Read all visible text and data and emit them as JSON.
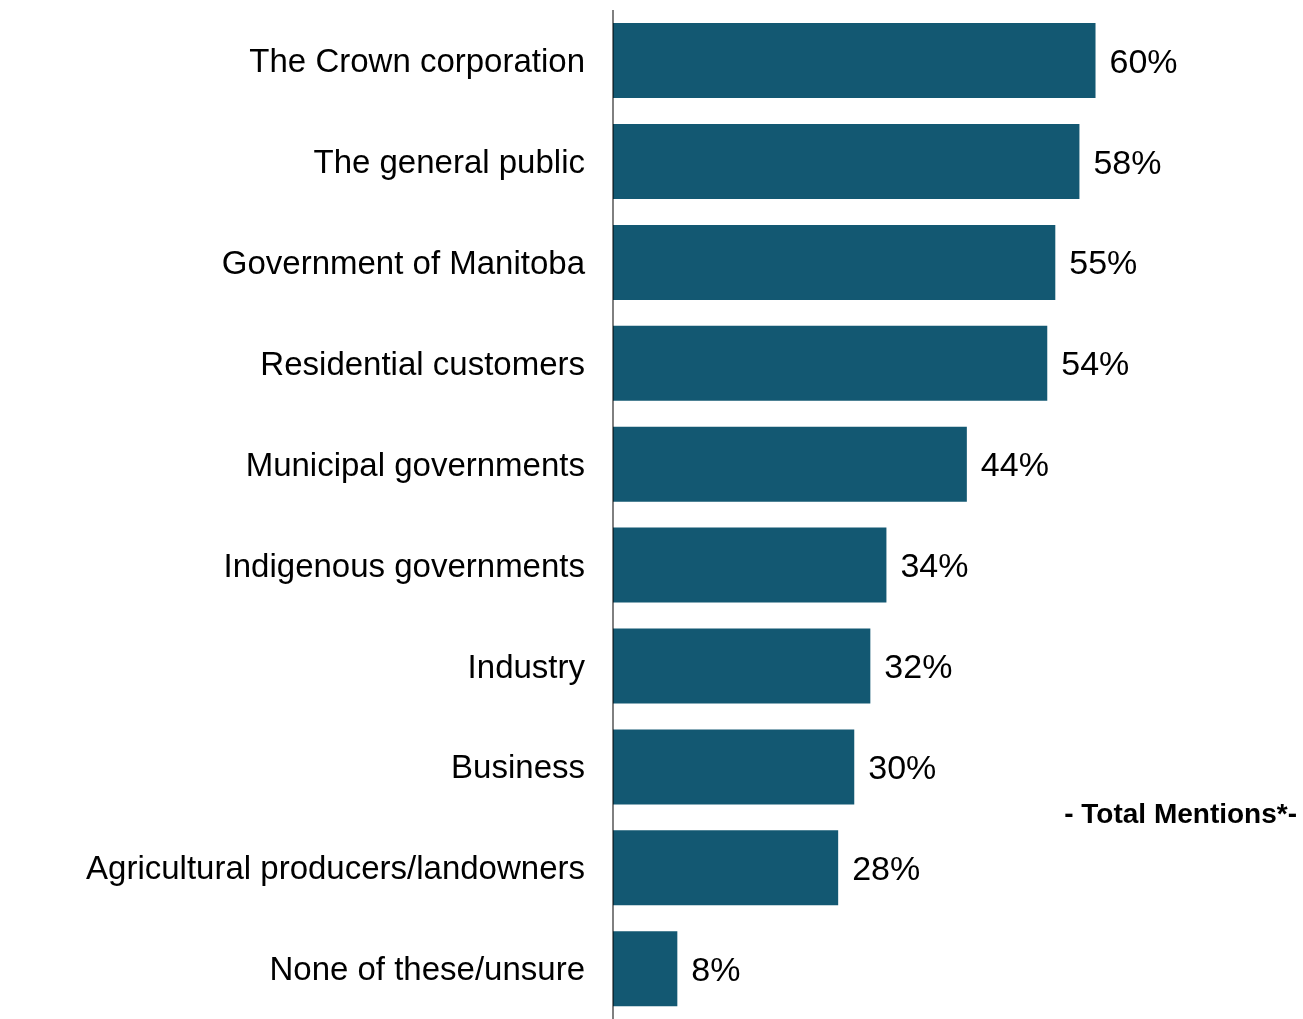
{
  "chart_data": {
    "type": "bar",
    "orientation": "horizontal",
    "categories": [
      "The Crown corporation",
      "The general public",
      "Government of Manitoba",
      "Residential customers",
      "Municipal governments",
      "Indigenous governments",
      "Industry",
      "Business",
      "Agricultural producers/landowners",
      "None of these/unsure"
    ],
    "values": [
      60,
      58,
      55,
      54,
      44,
      34,
      32,
      30,
      28,
      8
    ],
    "value_labels": [
      "60%",
      "58%",
      "55%",
      "54%",
      "44%",
      "34%",
      "32%",
      "30%",
      "28%",
      "8%"
    ],
    "color": "#135872",
    "annotations": [
      "- Total Mentions*-"
    ]
  }
}
